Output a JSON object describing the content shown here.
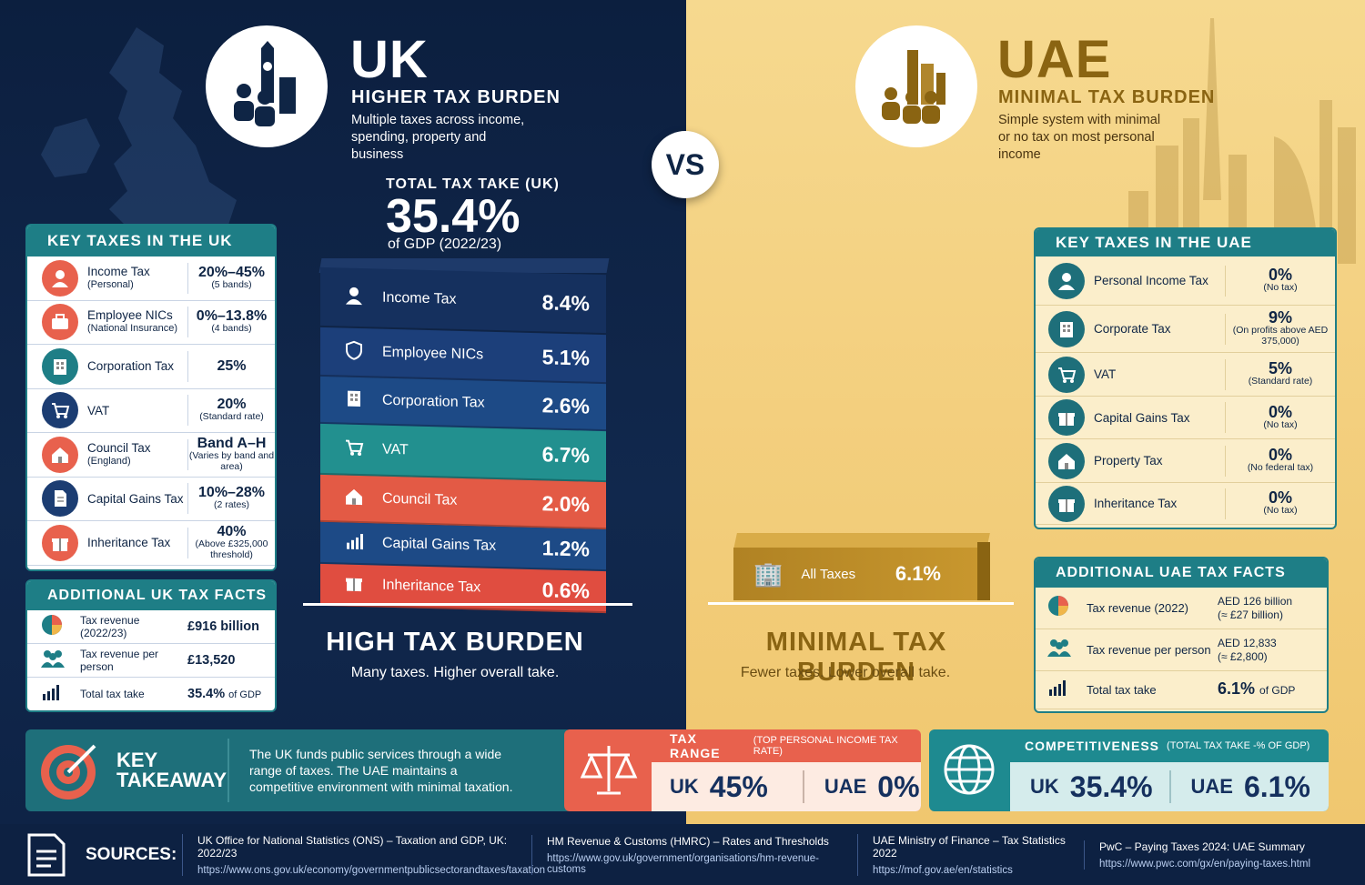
{
  "vs": "VS",
  "uk": {
    "title": "UK",
    "subtitle": "HIGHER TAX BURDEN",
    "desc": "Multiple taxes across income, spending, property and business",
    "total_label": "TOTAL TAX TAKE (UK)",
    "total_value": "35.4%",
    "total_sub": "of GDP (2022/23)",
    "key_taxes_title": "KEY TAXES IN THE UK",
    "key_taxes": [
      {
        "icon": "person-icon",
        "name": "Income Tax",
        "note": "(Personal)",
        "value": "20%–45%",
        "value_note": "(5 bands)",
        "color": "#e8614d"
      },
      {
        "icon": "briefcase-icon",
        "name": "Employee NICs",
        "note": "(National Insurance)",
        "value": "0%–13.8%",
        "value_note": "(4 bands)",
        "color": "#e8614d"
      },
      {
        "icon": "building-icon",
        "name": "Corporation Tax",
        "note": "",
        "value": "25%",
        "value_note": "",
        "color": "#1e7e86"
      },
      {
        "icon": "cart-icon",
        "name": "VAT",
        "note": "",
        "value": "20%",
        "value_note": "(Standard rate)",
        "color": "#1c3d72"
      },
      {
        "icon": "house-icon",
        "name": "Council Tax",
        "note": "(England)",
        "value": "Band A–H",
        "value_note": "(Varies by band and area)",
        "color": "#e8614d"
      },
      {
        "icon": "document-icon",
        "name": "Capital Gains Tax",
        "note": "",
        "value": "10%–28%",
        "value_note": "(2 rates)",
        "color": "#1c3d72"
      },
      {
        "icon": "gift-icon",
        "name": "Inheritance Tax",
        "note": "",
        "value": "40%",
        "value_note": "(Above £325,000 threshold)",
        "color": "#e8614d"
      }
    ],
    "facts_title": "ADDITIONAL UK TAX FACTS",
    "facts": [
      {
        "icon": "pie-icon",
        "label": "Tax revenue (2022/23)",
        "value": "£916 billion",
        "value_suffix": ""
      },
      {
        "icon": "people-icon",
        "label": "Tax revenue per person",
        "value": "£13,520",
        "value_suffix": ""
      },
      {
        "icon": "chart-icon",
        "label": "Total tax take",
        "value": "35.4%",
        "value_suffix": "of GDP"
      }
    ],
    "stack": [
      {
        "icon": "person-icon",
        "name": "Income Tax",
        "value": "8.4%",
        "color": "#15305e"
      },
      {
        "icon": "shield-icon",
        "name": "Employee NICs",
        "value": "5.1%",
        "color": "#1c3f7a"
      },
      {
        "icon": "building-icon",
        "name": "Corporation Tax",
        "value": "2.6%",
        "color": "#1d4a86"
      },
      {
        "icon": "cart-icon",
        "name": "VAT",
        "value": "6.7%",
        "color": "#22908f"
      },
      {
        "icon": "house-icon",
        "name": "Council Tax",
        "value": "2.0%",
        "color": "#e35a45"
      },
      {
        "icon": "chart-icon",
        "name": "Capital Gains Tax",
        "value": "1.2%",
        "color": "#1d4a86"
      },
      {
        "icon": "gift-icon",
        "name": "Inheritance Tax",
        "value": "0.6%",
        "color": "#e04d40"
      }
    ],
    "burden_title": "HIGH TAX BURDEN",
    "burden_sub": "Many taxes. Higher overall take."
  },
  "uae": {
    "title": "UAE",
    "subtitle": "MINIMAL TAX BURDEN",
    "desc": "Simple system with minimal or no tax on most personal income",
    "key_taxes_title": "KEY TAXES IN THE UAE",
    "key_taxes": [
      {
        "icon": "person-icon",
        "name": "Personal Income Tax",
        "value": "0%",
        "value_note": "(No tax)"
      },
      {
        "icon": "building-icon",
        "name": "Corporate Tax",
        "value": "9%",
        "value_note": "(On profits above AED 375,000)"
      },
      {
        "icon": "cart-icon",
        "name": "VAT",
        "value": "5%",
        "value_note": "(Standard rate)"
      },
      {
        "icon": "gift-icon",
        "name": "Capital Gains Tax",
        "value": "0%",
        "value_note": "(No tax)"
      },
      {
        "icon": "house-icon",
        "name": "Property Tax",
        "value": "0%",
        "value_note": "(No federal tax)"
      },
      {
        "icon": "gift-icon",
        "name": "Inheritance Tax",
        "value": "0%",
        "value_note": "(No tax)"
      }
    ],
    "facts_title": "ADDITIONAL UAE TAX FACTS",
    "facts": [
      {
        "icon": "pie-icon",
        "label": "Tax revenue (2022)",
        "value": "AED 126 billion",
        "value_note": "(≈ £27 billion)"
      },
      {
        "icon": "people-icon",
        "label": "Tax revenue per person",
        "value": "AED 12,833",
        "value_note": "(≈ £2,800)"
      },
      {
        "icon": "chart-icon",
        "label": "Total tax take",
        "value": "6.1%",
        "value_note": "of GDP"
      }
    ],
    "block_label": "All Taxes",
    "block_value": "6.1%",
    "burden_title": "MINIMAL TAX BURDEN",
    "burden_sub": "Fewer taxes. Lower overall take."
  },
  "takeaway": {
    "title_1": "KEY",
    "title_2": "TAKEAWAY",
    "text": "The UK funds public services through a wide range of taxes. The UAE maintains a competitive environment with minimal taxation."
  },
  "tax_range": {
    "title": "TAX RANGE",
    "title_note": "(TOP PERSONAL INCOME TAX RATE)",
    "uk_label": "UK",
    "uk_value": "45%",
    "uae_label": "UAE",
    "uae_value": "0%"
  },
  "competitiveness": {
    "title": "COMPETITIVENESS",
    "title_note": "(TOTAL TAX TAKE -% OF GDP)",
    "uk_label": "UK",
    "uk_value": "35.4%",
    "uae_label": "UAE",
    "uae_value": "6.1%"
  },
  "sources": {
    "label": "SOURCES:",
    "items": [
      {
        "name": "UK Office for National Statistics (ONS) – Taxation and GDP, UK: 2022/23",
        "url": "https://www.ons.gov.uk/economy/governmentpublicsectorandtaxes/taxation"
      },
      {
        "name": "HM Revenue & Customs (HMRC) – Rates and Thresholds",
        "url": "https://www.gov.uk/government/organisations/hm-revenue-customs"
      },
      {
        "name": "UAE Ministry of Finance – Tax Statistics 2022",
        "url": "https://mof.gov.ae/en/statistics"
      },
      {
        "name": "PwC – Paying Taxes 2024: UAE Summary",
        "url": "https://www.pwc.com/gx/en/paying-taxes.html"
      }
    ]
  },
  "colors": {
    "navy": "#0f2545",
    "teal": "#1e7e86",
    "coral": "#e8614d",
    "gold": "#8a6412"
  }
}
